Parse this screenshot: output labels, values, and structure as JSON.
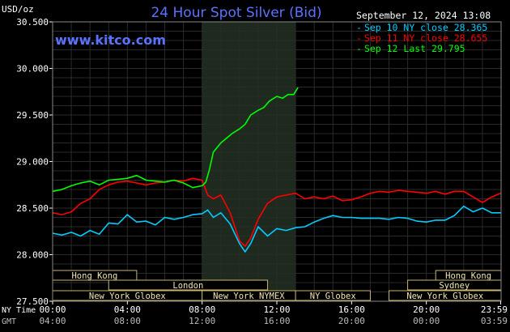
{
  "header": {
    "title": "24 Hour Spot Silver (Bid)",
    "unit": "USD/oz",
    "website": "www.kitco.com",
    "timestamp": "September 12, 2024 13:08"
  },
  "legend": {
    "entries": [
      {
        "dash": "-",
        "label": "Sep 10 NY close 28.365",
        "color": "#00ccff"
      },
      {
        "dash": "-",
        "label": "Sep 11 NY close 28.655",
        "color": "#ff0000"
      },
      {
        "dash": "-",
        "label": "Sep 12 Last 29.795",
        "color": "#00ff00"
      }
    ]
  },
  "axis_labels": {
    "ny_time": "NY Time",
    "gmt": "GMT"
  },
  "sessions": [
    {
      "label": "Hong Kong",
      "row": 0,
      "start": 0.0,
      "end": 4.5
    },
    {
      "label": "Hong Kong",
      "row": 0,
      "start": 20.5,
      "end": 24.0
    },
    {
      "label": "London",
      "row": 1,
      "start": 3.0,
      "end": 11.5
    },
    {
      "label": "Sydney",
      "row": 1,
      "start": 19.0,
      "end": 24.0
    },
    {
      "label": "New York Globex",
      "row": 2,
      "start": 0.0,
      "end": 8.0
    },
    {
      "label": "New York NYMEX",
      "row": 2,
      "start": 8.0,
      "end": 13.0
    },
    {
      "label": "NY Globex",
      "row": 2,
      "start": 13.0,
      "end": 17.0
    },
    {
      "label": "New York Globex",
      "row": 2,
      "start": 18.0,
      "end": 24.0
    }
  ],
  "chart_data": {
    "type": "line",
    "title": "24 Hour Spot Silver (Bid)",
    "ylabel": "USD/oz",
    "xlim": [
      0,
      24
    ],
    "ylim": [
      27.5,
      30.5
    ],
    "y_ticks": [
      "30.500",
      "30.000",
      "29.500",
      "29.000",
      "28.500",
      "28.000",
      "27.500"
    ],
    "y_tick_values": [
      30.5,
      30.0,
      29.5,
      29.0,
      28.5,
      28.0,
      27.5
    ],
    "x_ticks_ny": [
      "00:00",
      "04:00",
      "08:00",
      "12:00",
      "16:00",
      "20:00",
      "23:59"
    ],
    "x_ticks_gmt": [
      "04:00",
      "08:00",
      "12:00",
      "16:00",
      "20:00",
      "00:00",
      "03:59"
    ],
    "x_tick_hours": [
      0,
      4,
      8,
      12,
      16,
      20,
      23.98
    ],
    "highlight_range": [
      8.0,
      13.0
    ],
    "grid": true,
    "legend_position": "top-right",
    "series": [
      {
        "name": "Sep 10 NY close 28.365",
        "color": "#00ccff",
        "x": [
          0,
          0.5,
          1.0,
          1.5,
          2.0,
          2.5,
          3.0,
          3.5,
          4.0,
          4.5,
          5.0,
          5.5,
          6.0,
          6.5,
          7.0,
          7.5,
          8.0,
          8.3,
          8.6,
          9.0,
          9.5,
          10.0,
          10.3,
          10.6,
          11.0,
          11.5,
          12.0,
          12.5,
          13.0,
          13.5,
          14.0,
          14.5,
          15.0,
          15.5,
          16.0,
          16.5,
          17.0,
          17.5,
          18.0,
          18.5,
          19.0,
          19.5,
          20.0,
          20.5,
          21.0,
          21.5,
          22.0,
          22.5,
          23.0,
          23.5,
          23.98
        ],
        "y": [
          28.23,
          28.21,
          28.24,
          28.2,
          28.26,
          28.22,
          28.34,
          28.33,
          28.43,
          28.35,
          28.36,
          28.32,
          28.4,
          28.38,
          28.4,
          28.43,
          28.44,
          28.48,
          28.4,
          28.45,
          28.33,
          28.12,
          28.03,
          28.12,
          28.3,
          28.2,
          28.28,
          28.26,
          28.29,
          28.3,
          28.35,
          28.39,
          28.42,
          28.4,
          28.4,
          28.39,
          28.39,
          28.39,
          28.38,
          28.4,
          28.39,
          28.36,
          28.35,
          28.37,
          28.37,
          28.42,
          28.52,
          28.46,
          28.5,
          28.45,
          28.45
        ]
      },
      {
        "name": "Sep 11 NY close 28.655",
        "color": "#ff0000",
        "x": [
          0,
          0.5,
          1.0,
          1.5,
          2.0,
          2.5,
          3.0,
          3.5,
          4.0,
          4.5,
          5.0,
          5.5,
          6.0,
          6.5,
          7.0,
          7.5,
          8.0,
          8.3,
          8.6,
          9.0,
          9.5,
          10.0,
          10.3,
          10.6,
          11.0,
          11.5,
          12.0,
          12.5,
          13.0,
          13.5,
          14.0,
          14.5,
          15.0,
          15.5,
          16.0,
          16.5,
          17.0,
          17.5,
          18.0,
          18.5,
          19.0,
          19.5,
          20.0,
          20.5,
          21.0,
          21.5,
          22.0,
          22.5,
          23.0,
          23.5,
          23.98
        ],
        "y": [
          28.45,
          28.43,
          28.46,
          28.55,
          28.6,
          28.7,
          28.75,
          28.78,
          28.79,
          28.77,
          28.75,
          28.77,
          28.78,
          28.8,
          28.79,
          28.82,
          28.8,
          28.64,
          28.6,
          28.64,
          28.45,
          28.15,
          28.09,
          28.18,
          28.38,
          28.55,
          28.62,
          28.64,
          28.66,
          28.6,
          28.62,
          28.6,
          28.63,
          28.58,
          28.59,
          28.62,
          28.66,
          28.68,
          28.67,
          28.69,
          28.68,
          28.67,
          28.66,
          28.68,
          28.65,
          28.68,
          28.68,
          28.62,
          28.56,
          28.62,
          28.66
        ]
      },
      {
        "name": "Sep 12 Last 29.795",
        "color": "#00ff00",
        "x": [
          0,
          0.5,
          1.0,
          1.5,
          2.0,
          2.5,
          3.0,
          3.5,
          4.0,
          4.5,
          5.0,
          5.5,
          6.0,
          6.5,
          7.0,
          7.5,
          8.0,
          8.2,
          8.4,
          8.6,
          8.8,
          9.0,
          9.3,
          9.6,
          10.0,
          10.3,
          10.6,
          11.0,
          11.3,
          11.6,
          12.0,
          12.3,
          12.6,
          12.9,
          13.13
        ],
        "y": [
          28.68,
          28.7,
          28.74,
          28.77,
          28.79,
          28.75,
          28.8,
          28.81,
          28.82,
          28.85,
          28.8,
          28.79,
          28.78,
          28.8,
          28.77,
          28.72,
          28.74,
          28.78,
          28.92,
          29.1,
          29.15,
          29.2,
          29.25,
          29.3,
          29.35,
          29.4,
          29.5,
          29.55,
          29.58,
          29.65,
          29.7,
          29.68,
          29.72,
          29.72,
          29.795
        ]
      }
    ]
  }
}
